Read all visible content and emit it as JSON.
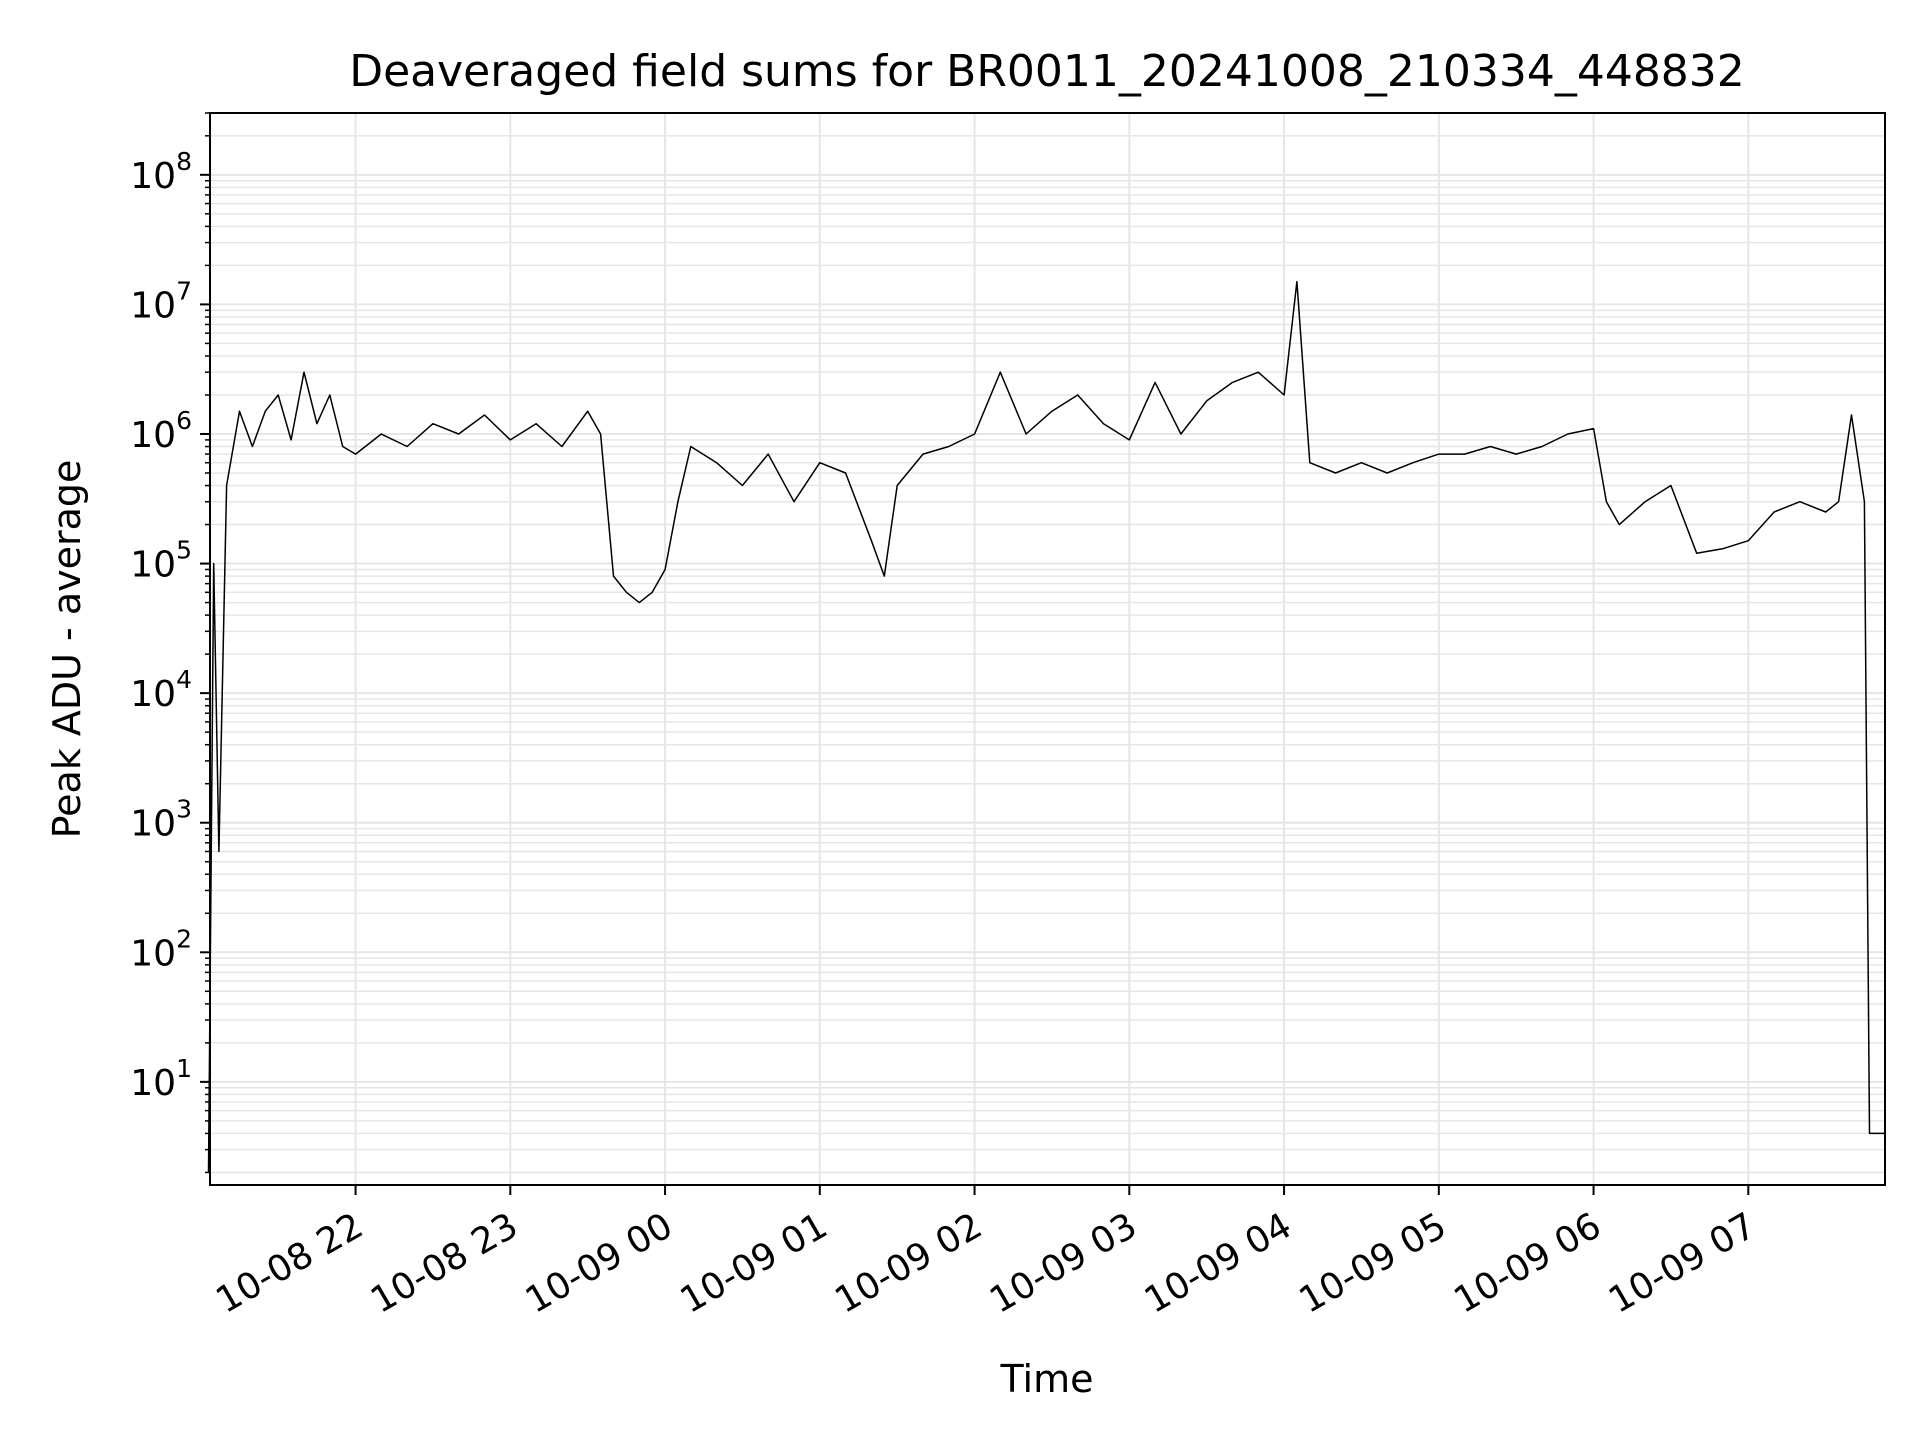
{
  "chart_data": {
    "type": "line",
    "title": "Deaveraged field sums for BR0011_20241008_210334_448832",
    "xlabel": "Time",
    "ylabel": "Peak ADU - average",
    "yscale": "log",
    "ylim": [
      1.6,
      300000000
    ],
    "xlim": [
      "2024-10-08 21:03:34",
      "2024-10-09 07:53:00"
    ],
    "grid": true,
    "legend": "none",
    "line_color": "#000000",
    "x_ticks": [
      {
        "value": "2024-10-08 22:00",
        "label": "10-08 22"
      },
      {
        "value": "2024-10-08 23:00",
        "label": "10-08 23"
      },
      {
        "value": "2024-10-09 00:00",
        "label": "10-09 00"
      },
      {
        "value": "2024-10-09 01:00",
        "label": "10-09 01"
      },
      {
        "value": "2024-10-09 02:00",
        "label": "10-09 02"
      },
      {
        "value": "2024-10-09 03:00",
        "label": "10-09 03"
      },
      {
        "value": "2024-10-09 04:00",
        "label": "10-09 04"
      },
      {
        "value": "2024-10-09 05:00",
        "label": "10-09 05"
      },
      {
        "value": "2024-10-09 06:00",
        "label": "10-09 06"
      },
      {
        "value": "2024-10-09 07:00",
        "label": "10-09 07"
      }
    ],
    "y_ticks": [
      {
        "value": 10,
        "base": "10",
        "exp": "1"
      },
      {
        "value": 100,
        "base": "10",
        "exp": "2"
      },
      {
        "value": 1000,
        "base": "10",
        "exp": "3"
      },
      {
        "value": 10000,
        "base": "10",
        "exp": "4"
      },
      {
        "value": 100000,
        "base": "10",
        "exp": "5"
      },
      {
        "value": 1000000,
        "base": "10",
        "exp": "6"
      },
      {
        "value": 10000000,
        "base": "10",
        "exp": "7"
      },
      {
        "value": 100000000,
        "base": "10",
        "exp": "8"
      }
    ],
    "series": [
      {
        "name": "",
        "x": [
          "2024-10-08 21:03",
          "2024-10-08 21:05",
          "2024-10-08 21:07",
          "2024-10-08 21:10",
          "2024-10-08 21:15",
          "2024-10-08 21:20",
          "2024-10-08 21:25",
          "2024-10-08 21:30",
          "2024-10-08 21:35",
          "2024-10-08 21:40",
          "2024-10-08 21:45",
          "2024-10-08 21:50",
          "2024-10-08 21:55",
          "2024-10-08 22:00",
          "2024-10-08 22:10",
          "2024-10-08 22:20",
          "2024-10-08 22:30",
          "2024-10-08 22:40",
          "2024-10-08 22:50",
          "2024-10-08 23:00",
          "2024-10-08 23:10",
          "2024-10-08 23:20",
          "2024-10-08 23:30",
          "2024-10-08 23:35",
          "2024-10-08 23:40",
          "2024-10-08 23:45",
          "2024-10-08 23:50",
          "2024-10-08 23:55",
          "2024-10-09 00:00",
          "2024-10-09 00:05",
          "2024-10-09 00:10",
          "2024-10-09 00:20",
          "2024-10-09 00:30",
          "2024-10-09 00:40",
          "2024-10-09 00:50",
          "2024-10-09 01:00",
          "2024-10-09 01:10",
          "2024-10-09 01:20",
          "2024-10-09 01:25",
          "2024-10-09 01:30",
          "2024-10-09 01:40",
          "2024-10-09 01:50",
          "2024-10-09 02:00",
          "2024-10-09 02:10",
          "2024-10-09 02:20",
          "2024-10-09 02:30",
          "2024-10-09 02:40",
          "2024-10-09 02:50",
          "2024-10-09 03:00",
          "2024-10-09 03:10",
          "2024-10-09 03:20",
          "2024-10-09 03:30",
          "2024-10-09 03:40",
          "2024-10-09 03:50",
          "2024-10-09 04:00",
          "2024-10-09 04:05",
          "2024-10-09 04:10",
          "2024-10-09 04:20",
          "2024-10-09 04:30",
          "2024-10-09 04:40",
          "2024-10-09 04:50",
          "2024-10-09 05:00",
          "2024-10-09 05:10",
          "2024-10-09 05:20",
          "2024-10-09 05:30",
          "2024-10-09 05:40",
          "2024-10-09 05:50",
          "2024-10-09 06:00",
          "2024-10-09 06:05",
          "2024-10-09 06:10",
          "2024-10-09 06:20",
          "2024-10-09 06:30",
          "2024-10-09 06:40",
          "2024-10-09 06:50",
          "2024-10-09 07:00",
          "2024-10-09 07:10",
          "2024-10-09 07:20",
          "2024-10-09 07:30",
          "2024-10-09 07:35",
          "2024-10-09 07:40",
          "2024-10-09 07:45",
          "2024-10-09 07:47",
          "2024-10-09 07:50",
          "2024-10-09 07:53"
        ],
        "values": [
          2,
          100000,
          600,
          400000,
          1500000,
          800000,
          1500000,
          2000000,
          900000,
          3000000,
          1200000,
          2000000,
          800000,
          700000,
          1000000,
          800000,
          1200000,
          1000000,
          1400000,
          900000,
          1200000,
          800000,
          1500000,
          1000000,
          80000,
          60000,
          50000,
          60000,
          90000,
          300000,
          800000,
          600000,
          400000,
          700000,
          300000,
          600000,
          500000,
          150000,
          80000,
          400000,
          700000,
          800000,
          1000000,
          3000000,
          1000000,
          1500000,
          2000000,
          1200000,
          900000,
          2500000,
          1000000,
          1800000,
          2500000,
          3000000,
          2000000,
          15000000,
          600000,
          500000,
          600000,
          500000,
          600000,
          700000,
          700000,
          800000,
          700000,
          800000,
          1000000,
          1100000,
          300000,
          200000,
          300000,
          400000,
          120000,
          130000,
          150000,
          250000,
          300000,
          250000,
          300000,
          1400000,
          300000,
          4,
          4,
          4
        ]
      }
    ]
  }
}
